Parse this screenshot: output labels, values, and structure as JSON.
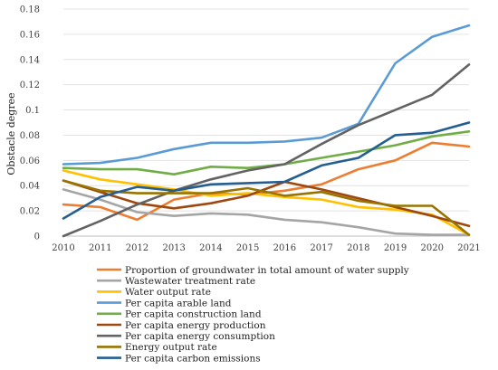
{
  "chart_data": {
    "type": "line",
    "title": "",
    "xlabel": "",
    "ylabel": "Obstacle degree",
    "x": [
      "2010",
      "2011",
      "2012",
      "2013",
      "2014",
      "2015",
      "2016",
      "2017",
      "2018",
      "2019",
      "2020",
      "2021"
    ],
    "ylim": [
      0,
      0.18
    ],
    "yticks": [
      "0",
      "0.02",
      "0.04",
      "0.06",
      "0.08",
      "0.1",
      "0.12",
      "0.14",
      "0.16",
      "0.18"
    ],
    "grid": true,
    "legend_position": "bottom",
    "series": [
      {
        "name": "Proportion of groundwater in total amount of water supply",
        "color": "#ED7D31",
        "values": [
          0.025,
          0.023,
          0.013,
          0.029,
          0.034,
          0.033,
          0.036,
          0.041,
          0.053,
          0.06,
          0.074,
          0.071
        ]
      },
      {
        "name": "Wastewater treatment rate",
        "color": "#A5A5A5",
        "values": [
          0.037,
          0.029,
          0.019,
          0.016,
          0.018,
          0.017,
          0.013,
          0.011,
          0.007,
          0.002,
          0.001,
          0.001
        ]
      },
      {
        "name": "Water output rate",
        "color": "#FFC000",
        "values": [
          0.052,
          0.045,
          0.041,
          0.037,
          0.032,
          0.034,
          0.031,
          0.029,
          0.023,
          0.021,
          0.017,
          0.001
        ]
      },
      {
        "name": "Per capita arable land",
        "color": "#5B9BD5",
        "values": [
          0.057,
          0.058,
          0.062,
          0.069,
          0.074,
          0.074,
          0.075,
          0.078,
          0.089,
          0.137,
          0.158,
          0.167
        ]
      },
      {
        "name": "Per capita construction land",
        "color": "#70AD47",
        "values": [
          0.054,
          0.053,
          0.053,
          0.049,
          0.055,
          0.054,
          0.057,
          0.062,
          0.067,
          0.072,
          0.079,
          0.083
        ]
      },
      {
        "name": "Per capita energy production",
        "color": "#9E480E",
        "values": [
          0.044,
          0.035,
          0.026,
          0.022,
          0.026,
          0.032,
          0.043,
          0.037,
          0.03,
          0.023,
          0.016,
          0.008
        ]
      },
      {
        "name": "Per capita energy consumption",
        "color": "#636363",
        "values": [
          0.0,
          0.012,
          0.025,
          0.036,
          0.045,
          0.052,
          0.057,
          0.073,
          0.088,
          0.1,
          0.112,
          0.136
        ]
      },
      {
        "name": "Energy output rate",
        "color": "#997300",
        "values": [
          0.044,
          0.036,
          0.034,
          0.034,
          0.034,
          0.038,
          0.032,
          0.035,
          0.028,
          0.024,
          0.024,
          0.001
        ]
      },
      {
        "name": "Per capita carbon emissions",
        "color": "#255E91",
        "values": [
          0.014,
          0.031,
          0.039,
          0.036,
          0.041,
          0.042,
          0.043,
          0.056,
          0.062,
          0.08,
          0.082,
          0.09
        ]
      }
    ]
  }
}
